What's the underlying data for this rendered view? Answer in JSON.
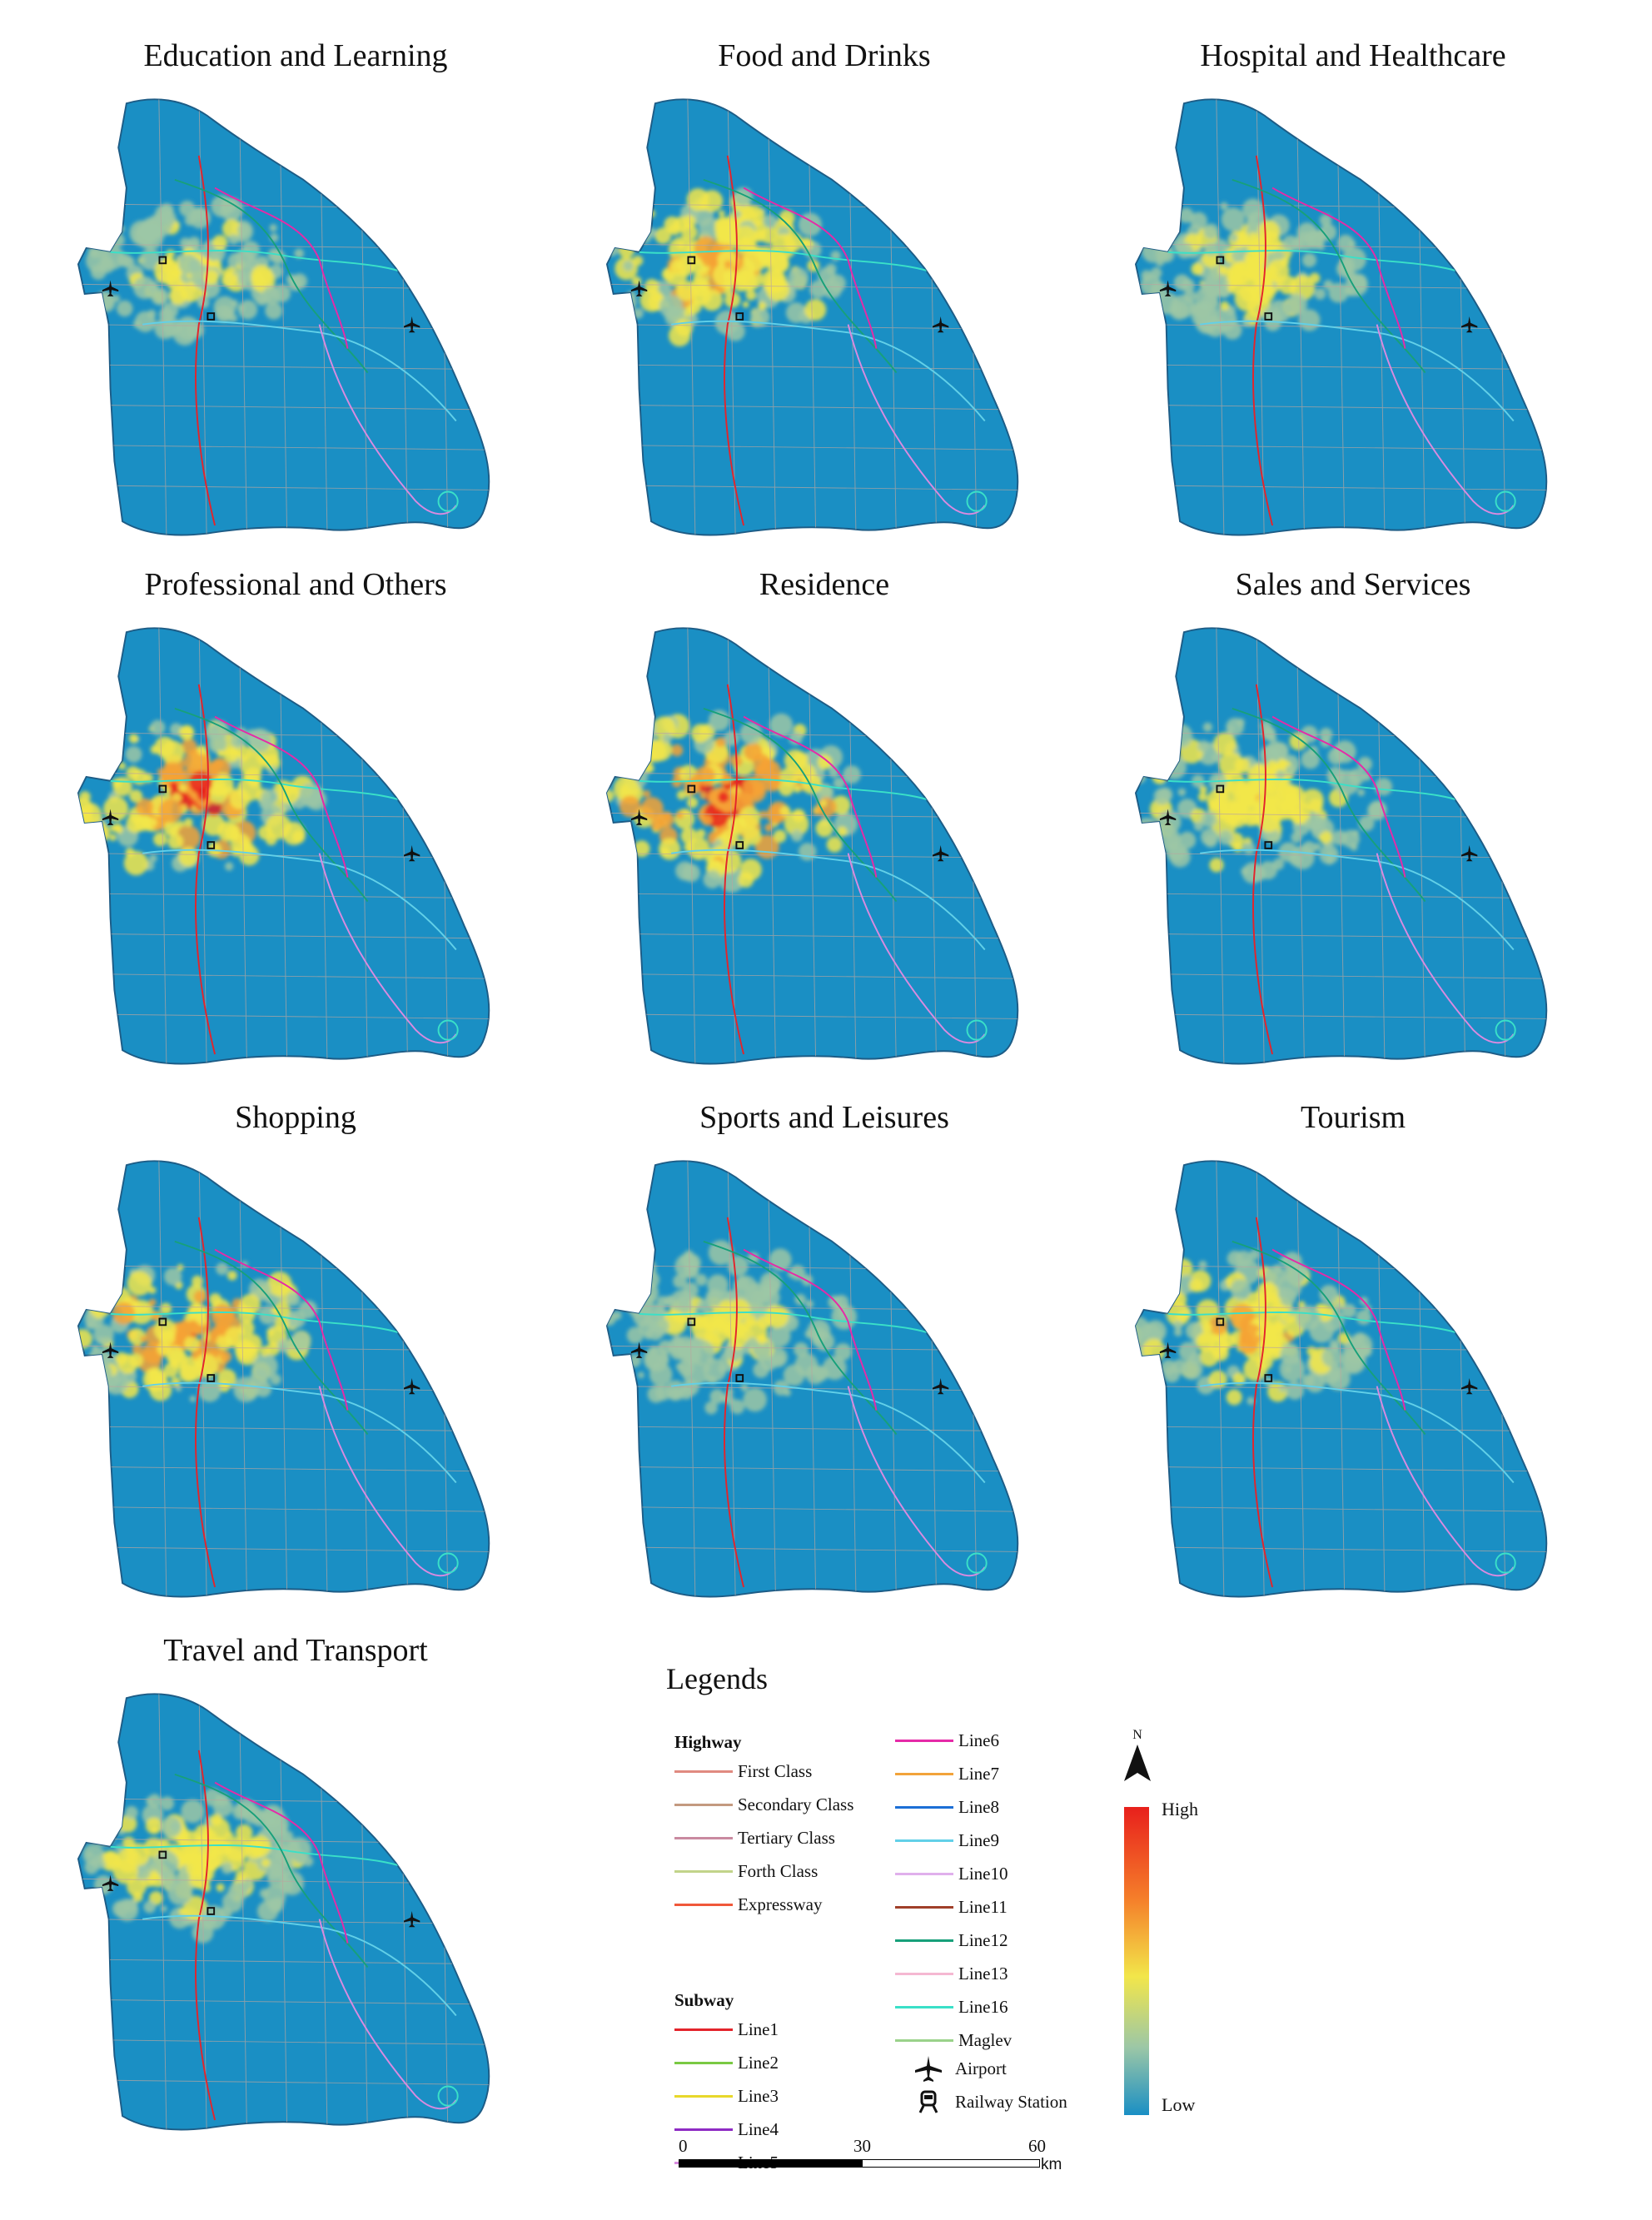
{
  "panels": [
    {
      "title": "Education and Learning",
      "intensity": 0.45,
      "extent": 0.55
    },
    {
      "title": "Food and Drinks",
      "intensity": 0.8,
      "extent": 0.65
    },
    {
      "title": "Hospital and Healthcare",
      "intensity": 0.5,
      "extent": 0.55
    },
    {
      "title": "Professional and Others",
      "intensity": 0.95,
      "extent": 0.7
    },
    {
      "title": "Residence",
      "intensity": 1.0,
      "extent": 0.85
    },
    {
      "title": "Sales and Services",
      "intensity": 0.55,
      "extent": 0.8
    },
    {
      "title": "Shopping",
      "intensity": 0.9,
      "extent": 0.65
    },
    {
      "title": "Sports and Leisures",
      "intensity": 0.4,
      "extent": 0.75
    },
    {
      "title": "Tourism",
      "intensity": 0.65,
      "extent": 0.7
    },
    {
      "title": "Travel and Transport",
      "intensity": 0.55,
      "extent": 0.6
    }
  ],
  "legend": {
    "title": "Legends",
    "highway_heading": "Highway",
    "subway_heading": "Subway",
    "highway": [
      {
        "label": "First Class",
        "color": "#e08a80"
      },
      {
        "label": "Secondary Class",
        "color": "#c49a80"
      },
      {
        "label": "Tertiary Class",
        "color": "#c98aa0"
      },
      {
        "label": "Forth Class",
        "color": "#c2d48a"
      },
      {
        "label": "Expressway",
        "color": "#f0583a"
      }
    ],
    "subway_col1": [
      {
        "label": "Line1",
        "color": "#e3242b"
      },
      {
        "label": "Line2",
        "color": "#7ac943"
      },
      {
        "label": "Line3",
        "color": "#e8d82a"
      },
      {
        "label": "Line4",
        "color": "#8e2bc4"
      },
      {
        "label": "Line5",
        "color": "#d98be0"
      }
    ],
    "subway_col2": [
      {
        "label": "Line6",
        "color": "#e62aa8"
      },
      {
        "label": "Line7",
        "color": "#f2a33a"
      },
      {
        "label": "Line8",
        "color": "#1c6fd6"
      },
      {
        "label": "Line9",
        "color": "#62d0e8"
      },
      {
        "label": "Line10",
        "color": "#e0b0ec"
      },
      {
        "label": "Line11",
        "color": "#a0402a"
      },
      {
        "label": "Line12",
        "color": "#17a07a"
      },
      {
        "label": "Line13",
        "color": "#f5b8d2"
      },
      {
        "label": "Line16",
        "color": "#3ae0c8"
      },
      {
        "label": "Maglev",
        "color": "#9ad28a"
      }
    ],
    "airport_label": "Airport",
    "railway_label": "Railway Station",
    "colorbar_high": "High",
    "colorbar_low": "Low",
    "north_label": "N",
    "scale_labels": [
      "0",
      "30",
      "60"
    ],
    "scale_unit": "km"
  },
  "colors": {
    "map_fill": "#1a8fc4",
    "map_outline": "#1d5c86",
    "heat_low": "#9cc7a6",
    "heat_mid": "#f2e64a",
    "heat_high": "#e8201c"
  }
}
